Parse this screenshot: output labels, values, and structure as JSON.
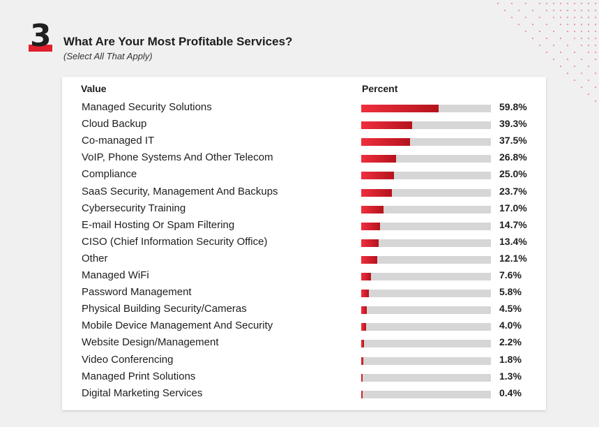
{
  "question": {
    "number": "3",
    "title": "What Are Your Most Profitable Services?",
    "subtitle": "(Select All That Apply)"
  },
  "colors": {
    "accent": "#e0202e",
    "bar_dark": "#b5131d",
    "track": "#d6d6d6"
  },
  "chart_data": {
    "type": "bar",
    "orientation": "horizontal",
    "title": "What Are Your Most Profitable Services?",
    "subtitle": "(Select All That Apply)",
    "column_headers": {
      "category": "Value",
      "value": "Percent"
    },
    "xlim": [
      0,
      100
    ],
    "categories": [
      "Managed Security Solutions",
      "Cloud Backup",
      "Co-managed IT",
      "VoIP, Phone Systems And Other Telecom",
      "Compliance",
      "SaaS Security, Management And Backups",
      "Cybersecurity Training",
      "E-mail Hosting Or Spam Filtering",
      "CISO (Chief Information Security Office)",
      "Other",
      "Managed WiFi",
      "Password Management",
      "Physical Building Security/Cameras",
      "Mobile Device Management And Security",
      "Website Design/Management",
      "Video Conferencing",
      "Managed Print Solutions",
      "Digital Marketing Services"
    ],
    "values": [
      59.8,
      39.3,
      37.5,
      26.8,
      25.0,
      23.7,
      17.0,
      14.7,
      13.4,
      12.1,
      7.6,
      5.8,
      4.5,
      4.0,
      2.2,
      1.8,
      1.3,
      0.4
    ],
    "value_labels": [
      "59.8%",
      "39.3%",
      "37.5%",
      "26.8%",
      "25.0%",
      "23.7%",
      "17.0%",
      "14.7%",
      "13.4%",
      "12.1%",
      "7.6%",
      "5.8%",
      "4.5%",
      "4.0%",
      "2.2%",
      "1.8%",
      "1.3%",
      "0.4%"
    ]
  }
}
